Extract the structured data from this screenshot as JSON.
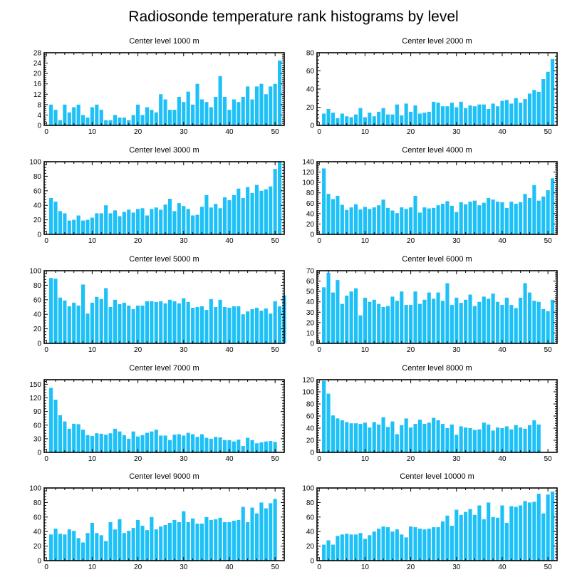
{
  "figure": {
    "title": "Radiosonde temperature rank histograms by level"
  },
  "colors": {
    "bar": "#1ec1f7",
    "axis": "#000000"
  },
  "chart_data": [
    {
      "type": "bar",
      "title": "Center level 1000 m",
      "xlabel": "",
      "ylabel": "",
      "xlim": [
        -0.5,
        52
      ],
      "ylim": [
        0,
        28
      ],
      "xticks": [
        "0",
        "10",
        "20",
        "30",
        "40",
        "50"
      ],
      "yticks": [
        "0",
        "4",
        "8",
        "12",
        "16",
        "20",
        "24",
        "28"
      ],
      "values": [
        8,
        6,
        2,
        8,
        5,
        7,
        8,
        4,
        3,
        7,
        8,
        6,
        2,
        2,
        4,
        3,
        3,
        2,
        4,
        8,
        4,
        7,
        6,
        5,
        12,
        10,
        6,
        6,
        11,
        9,
        13,
        8,
        16,
        10,
        9,
        7,
        11,
        19,
        11,
        6,
        10,
        9,
        11,
        15,
        10,
        15,
        16,
        12,
        15,
        16,
        25
      ]
    },
    {
      "type": "bar",
      "title": "Center level 2000 m",
      "xlabel": "",
      "ylabel": "",
      "xlim": [
        -0.5,
        52
      ],
      "ylim": [
        0,
        80
      ],
      "xticks": [
        "0",
        "10",
        "20",
        "30",
        "40",
        "50"
      ],
      "yticks": [
        "0",
        "20",
        "40",
        "60",
        "80"
      ],
      "values": [
        13,
        18,
        14,
        8,
        13,
        10,
        9,
        12,
        19,
        9,
        14,
        10,
        15,
        19,
        12,
        12,
        23,
        11,
        24,
        15,
        22,
        13,
        14,
        15,
        26,
        25,
        21,
        21,
        25,
        20,
        26,
        19,
        22,
        21,
        23,
        23,
        18,
        24,
        21,
        27,
        28,
        24,
        30,
        25,
        29,
        35,
        39,
        37,
        51,
        59,
        73
      ]
    },
    {
      "type": "bar",
      "title": "Center level 3000 m",
      "xlabel": "",
      "ylabel": "",
      "xlim": [
        -0.5,
        52
      ],
      "ylim": [
        0,
        100
      ],
      "xticks": [
        "0",
        "10",
        "20",
        "30",
        "40",
        "50"
      ],
      "yticks": [
        "0",
        "20",
        "40",
        "60",
        "80",
        "100"
      ],
      "values": [
        50,
        45,
        32,
        29,
        19,
        20,
        26,
        19,
        20,
        23,
        29,
        29,
        40,
        29,
        33,
        25,
        31,
        34,
        30,
        35,
        36,
        26,
        35,
        37,
        34,
        41,
        49,
        32,
        43,
        39,
        35,
        26,
        27,
        38,
        54,
        37,
        42,
        36,
        51,
        47,
        54,
        63,
        50,
        65,
        57,
        68,
        60,
        62,
        66,
        90,
        100
      ]
    },
    {
      "type": "bar",
      "title": "Center level 4000 m",
      "xlabel": "",
      "ylabel": "",
      "xlim": [
        -0.5,
        52
      ],
      "ylim": [
        0,
        140
      ],
      "xticks": [
        "0",
        "10",
        "20",
        "30",
        "40",
        "50"
      ],
      "yticks": [
        "0",
        "20",
        "40",
        "60",
        "80",
        "100",
        "120",
        "140"
      ],
      "values": [
        127,
        78,
        68,
        74,
        57,
        47,
        52,
        58,
        48,
        53,
        49,
        52,
        56,
        67,
        51,
        46,
        41,
        52,
        49,
        52,
        74,
        42,
        52,
        50,
        51,
        56,
        59,
        64,
        55,
        43,
        62,
        58,
        63,
        65,
        56,
        61,
        70,
        67,
        63,
        62,
        51,
        63,
        59,
        62,
        78,
        70,
        95,
        65,
        73,
        85,
        108
      ]
    },
    {
      "type": "bar",
      "title": "Center level 5000 m",
      "xlabel": "",
      "ylabel": "",
      "xlim": [
        -0.5,
        52
      ],
      "ylim": [
        0,
        100
      ],
      "xticks": [
        "0",
        "10",
        "20",
        "30",
        "40",
        "50"
      ],
      "yticks": [
        "0",
        "20",
        "40",
        "60",
        "80",
        "100"
      ],
      "values": [
        90,
        89,
        63,
        59,
        51,
        56,
        52,
        81,
        41,
        56,
        64,
        61,
        76,
        50,
        60,
        54,
        56,
        52,
        47,
        52,
        52,
        58,
        58,
        57,
        58,
        55,
        60,
        58,
        55,
        62,
        57,
        49,
        50,
        51,
        46,
        61,
        50,
        60,
        50,
        49,
        51,
        51,
        40,
        44,
        47,
        49,
        45,
        48,
        41,
        58,
        51,
        66
      ]
    },
    {
      "type": "bar",
      "title": "Center level 6000 m",
      "xlabel": "",
      "ylabel": "",
      "xlim": [
        -0.5,
        52
      ],
      "ylim": [
        0,
        70
      ],
      "xticks": [
        "0",
        "10",
        "20",
        "30",
        "40",
        "50"
      ],
      "yticks": [
        "0",
        "10",
        "20",
        "30",
        "40",
        "50",
        "60",
        "70"
      ],
      "values": [
        54,
        68,
        49,
        61,
        38,
        46,
        50,
        53,
        27,
        44,
        40,
        42,
        38,
        35,
        36,
        45,
        41,
        50,
        37,
        37,
        50,
        38,
        42,
        49,
        43,
        49,
        41,
        58,
        37,
        44,
        39,
        42,
        47,
        36,
        40,
        45,
        43,
        48,
        40,
        37,
        44,
        37,
        34,
        44,
        58,
        49,
        41,
        40,
        33,
        31,
        42
      ]
    },
    {
      "type": "bar",
      "title": "Center level 7000 m",
      "xlabel": "",
      "ylabel": "",
      "xlim": [
        -0.5,
        52
      ],
      "ylim": [
        0,
        160
      ],
      "xticks": [
        "0",
        "10",
        "20",
        "30",
        "40",
        "50"
      ],
      "yticks": [
        "0",
        "30",
        "60",
        "90",
        "120",
        "150"
      ],
      "values": [
        142,
        116,
        82,
        68,
        52,
        63,
        62,
        50,
        38,
        36,
        42,
        41,
        39,
        42,
        52,
        46,
        38,
        30,
        46,
        35,
        38,
        43,
        46,
        50,
        37,
        37,
        27,
        39,
        40,
        37,
        43,
        40,
        34,
        40,
        32,
        30,
        34,
        33,
        27,
        27,
        24,
        28,
        14,
        32,
        27,
        20,
        22,
        24,
        25,
        23
      ]
    },
    {
      "type": "bar",
      "title": "Center level 8000 m",
      "xlabel": "",
      "ylabel": "",
      "xlim": [
        -0.5,
        52
      ],
      "ylim": [
        0,
        120
      ],
      "xticks": [
        "0",
        "10",
        "20",
        "30",
        "40",
        "50"
      ],
      "yticks": [
        "0",
        "20",
        "40",
        "60",
        "80",
        "100",
        "120"
      ],
      "values": [
        118,
        97,
        61,
        56,
        53,
        50,
        48,
        48,
        47,
        49,
        41,
        50,
        46,
        58,
        42,
        51,
        30,
        45,
        56,
        41,
        47,
        54,
        47,
        49,
        57,
        53,
        47,
        40,
        46,
        29,
        43,
        41,
        40,
        37,
        38,
        49,
        46,
        36,
        41,
        40,
        43,
        38,
        45,
        41,
        39,
        45,
        53,
        46
      ]
    },
    {
      "type": "bar",
      "title": "Center level 9000 m",
      "xlabel": "",
      "ylabel": "",
      "xlim": [
        -0.5,
        52
      ],
      "ylim": [
        0,
        100
      ],
      "xticks": [
        "0",
        "10",
        "20",
        "30",
        "40",
        "50"
      ],
      "yticks": [
        "0",
        "20",
        "40",
        "60",
        "80",
        "100"
      ],
      "values": [
        36,
        44,
        37,
        36,
        43,
        41,
        31,
        25,
        38,
        52,
        38,
        35,
        27,
        53,
        43,
        57,
        38,
        41,
        45,
        56,
        48,
        42,
        60,
        43,
        47,
        49,
        52,
        56,
        53,
        68,
        53,
        58,
        51,
        51,
        60,
        56,
        57,
        59,
        53,
        53,
        55,
        56,
        74,
        53,
        73,
        65,
        80,
        72,
        79,
        85
      ]
    },
    {
      "type": "bar",
      "title": "Center level 10000 m",
      "xlabel": "",
      "ylabel": "",
      "xlim": [
        -0.5,
        52
      ],
      "ylim": [
        0,
        100
      ],
      "xticks": [
        "0",
        "10",
        "20",
        "30",
        "40",
        "50"
      ],
      "yticks": [
        "0",
        "20",
        "40",
        "60",
        "80",
        "100"
      ],
      "values": [
        22,
        28,
        22,
        34,
        36,
        37,
        36,
        36,
        38,
        30,
        35,
        40,
        44,
        47,
        46,
        40,
        43,
        36,
        32,
        47,
        46,
        44,
        43,
        44,
        46,
        46,
        54,
        62,
        48,
        70,
        63,
        67,
        71,
        63,
        76,
        57,
        80,
        60,
        59,
        76,
        52,
        75,
        74,
        76,
        82,
        80,
        81,
        92,
        65,
        91,
        95
      ]
    }
  ]
}
